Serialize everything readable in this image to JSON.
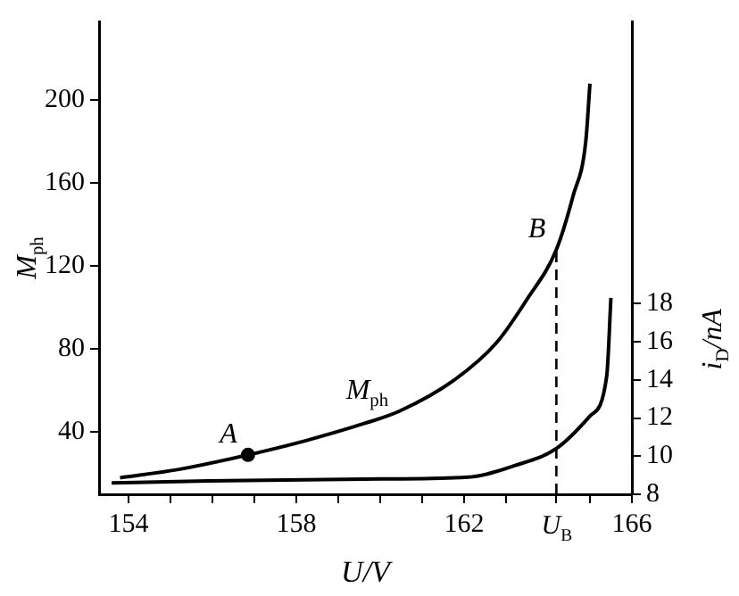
{
  "chart_data": {
    "type": "line",
    "xlabel": "U/V",
    "ylabel": "M$_{ph}$",
    "y2label": "i$_{D}$/nA",
    "xlim": [
      153.3,
      166
    ],
    "ylim": [
      10,
      238
    ],
    "y2lim": [
      8,
      32.8
    ],
    "xticks": [
      154,
      {
        "value": 155,
        "label": null
      },
      {
        "value": 156,
        "label": null
      },
      {
        "value": 157,
        "label": null
      },
      158,
      {
        "value": 159,
        "label": null
      },
      {
        "value": 160,
        "label": null
      },
      {
        "value": 161,
        "label": null
      },
      162,
      {
        "value": 163,
        "label": null
      },
      {
        "value": 164.2,
        "label": "U$_{B}$"
      },
      {
        "value": 165,
        "label": null
      },
      166
    ],
    "yticks": [
      40,
      80,
      120,
      160,
      200
    ],
    "y2ticks": [
      8,
      10,
      12,
      14,
      16,
      18
    ],
    "series": [
      {
        "color": "#000000",
        "marker": "none",
        "x": [
          153.8,
          155.2,
          156.85,
          158.25,
          159.6,
          160.45,
          161.76,
          162.77,
          163.5,
          164.2,
          164.6,
          164.9,
          165.0
        ],
        "values": [
          18,
          22,
          29,
          36,
          44,
          50,
          65,
          83,
          104,
          128,
          154,
          180,
          208
        ]
      },
      {
        "color": "#000000",
        "marker": "none",
        "axis": "y2",
        "x": [
          153.6,
          155.9,
          159.6,
          162.1,
          163.2,
          164.2,
          165.0,
          165.4,
          165.5
        ],
        "values": [
          8.6,
          8.7,
          8.8,
          8.9,
          9.5,
          10.4,
          12.1,
          14.2,
          18.3
        ]
      },
      {
        "type": "scatter",
        "marker": "circle",
        "color": "#000000",
        "x": [
          156.85
        ],
        "values": [
          29
        ]
      }
    ],
    "ref_lines": [
      {
        "axis": "x",
        "value": 164.2,
        "line_style": "dashed",
        "color": "#000000"
      }
    ],
    "annotations": [
      {
        "text": "A",
        "x": 156.85,
        "y": 29
      },
      {
        "text": "B",
        "x": 164.2,
        "y": 128
      },
      {
        "text": "M$_{ph}$",
        "x": 160.45,
        "y": 50
      }
    ],
    "grid": false,
    "legend": false,
    "line_style": "solid"
  }
}
